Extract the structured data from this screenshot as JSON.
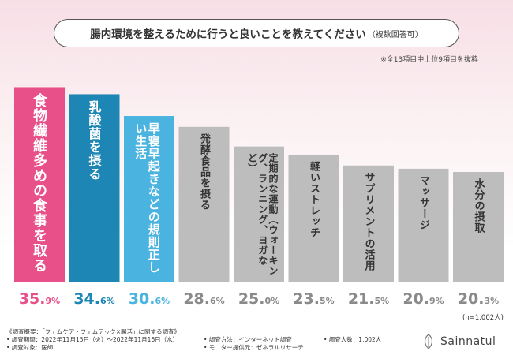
{
  "header": {
    "question": "腸内環境を整えるために行うと良いことを教えてください",
    "question_suffix": "（複数回答可）",
    "note": "※全13項目中上位9項目を抜粋"
  },
  "chart_data": {
    "type": "bar",
    "categories": [
      "食物繊維多めの食事を取る",
      "乳酸菌を摂る",
      "早寝早起きなどの規則正しい生活",
      "発酵食品を摂る",
      "定期的な運動（ウォーキング、ランニング、ヨガなど）",
      "軽いストレッチ",
      "サプリメントの活用",
      "マッサージ",
      "水分の摂取"
    ],
    "values": [
      35.9,
      34.6,
      30.6,
      28.6,
      25.0,
      23.5,
      21.5,
      20.9,
      20.3
    ],
    "value_labels": [
      {
        "int": "35.",
        "dec": "9",
        "unit": "%"
      },
      {
        "int": "34.",
        "dec": "6",
        "unit": "%"
      },
      {
        "int": "30.",
        "dec": "6",
        "unit": "%"
      },
      {
        "int": "28.",
        "dec": "6",
        "unit": "%"
      },
      {
        "int": "25.",
        "dec": "0",
        "unit": "%"
      },
      {
        "int": "23.",
        "dec": "5",
        "unit": "%"
      },
      {
        "int": "21.",
        "dec": "5",
        "unit": "%"
      },
      {
        "int": "20.",
        "dec": "9",
        "unit": "%"
      },
      {
        "int": "20.",
        "dec": "3",
        "unit": "%"
      }
    ],
    "bar_colors": [
      "#e8508a",
      "#1e86b4",
      "#4ab3e0",
      "#bdbdbd",
      "#bdbdbd",
      "#bdbdbd",
      "#bdbdbd",
      "#bdbdbd",
      "#bdbdbd"
    ],
    "label_colors": [
      "#e8508a",
      "#1e86b4",
      "#4ab3e0",
      "#8a8a8a",
      "#8a8a8a",
      "#8a8a8a",
      "#8a8a8a",
      "#8a8a8a",
      "#8a8a8a"
    ],
    "ylim": [
      0,
      38
    ],
    "n_note": "(n=1,002人)"
  },
  "footer": {
    "col1": [
      "《調査概要：「フェムケア・フェムテック×腸活」に関する調査》",
      "• 調査期間：2022年11月15日（火）～2022年11月16日（水）",
      "• 調査対象：医師"
    ],
    "col2": [
      "• 調査方法：インターネット調査",
      "• モニター提供元：ゼネラルリサーチ"
    ],
    "col3": [
      "• 調査人数：1,002人"
    ],
    "logo": "Sainnatul"
  }
}
